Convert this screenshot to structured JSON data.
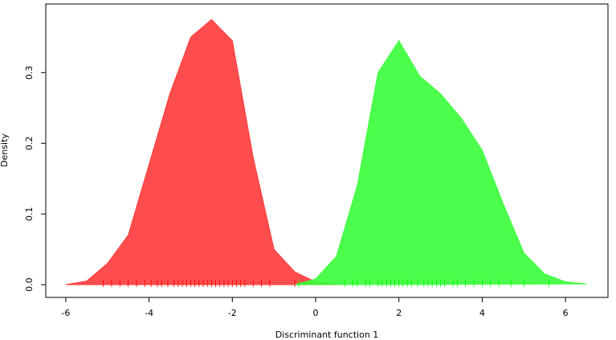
{
  "chart_data": {
    "type": "density",
    "x_label": "Discriminant function 1",
    "y_label": "Density",
    "x": [
      -6,
      -5.5,
      -5,
      -4.5,
      -4,
      -3.5,
      -3,
      -2.5,
      -2,
      -1.5,
      -1,
      -0.5,
      0,
      0.5,
      1,
      1.5,
      2,
      2.5,
      3,
      3.5,
      4,
      4.5,
      5,
      5.5,
      6,
      6.5
    ],
    "series": [
      {
        "color": "#ff3a3a",
        "values": [
          0,
          0.005,
          0.03,
          0.07,
          0.17,
          0.27,
          0.35,
          0.375,
          0.345,
          0.18,
          0.05,
          0.018,
          0.004,
          0,
          null,
          null,
          null,
          null,
          null,
          null,
          null,
          null,
          null,
          null,
          null,
          null
        ],
        "rug_color": "#ff0000",
        "rug": [
          -5.1,
          -4.9,
          -4.7,
          -4.5,
          -4.3,
          -4.1,
          -3.95,
          -3.8,
          -3.7,
          -3.55,
          -3.4,
          -3.3,
          -3.2,
          -3.1,
          -3.0,
          -2.9,
          -2.8,
          -2.7,
          -2.6,
          -2.5,
          -2.4,
          -2.3,
          -2.2,
          -2.1,
          -2.0,
          -1.9,
          -1.8,
          -1.7,
          -1.5,
          -1.3,
          -1.1,
          -0.5
        ]
      },
      {
        "color": "#3aff3a",
        "values": [
          null,
          null,
          null,
          null,
          null,
          null,
          null,
          null,
          null,
          null,
          null,
          0,
          0.008,
          0.04,
          0.14,
          0.3,
          0.345,
          0.295,
          0.27,
          0.235,
          0.19,
          0.115,
          0.045,
          0.015,
          0.004,
          0.001
        ],
        "rug_color": "#00ff00",
        "rug": [
          -0.4,
          0.7,
          0.9,
          1.0,
          1.2,
          1.3,
          1.5,
          1.6,
          1.7,
          1.8,
          1.9,
          2.0,
          2.1,
          2.2,
          2.3,
          2.45,
          2.6,
          2.7,
          2.8,
          2.9,
          3.0,
          3.1,
          3.3,
          3.4,
          3.6,
          3.8,
          4.0,
          4.2,
          4.4,
          4.7,
          5.0,
          5.6
        ]
      }
    ],
    "xlim": [
      -6.48,
      7.02
    ],
    "ylim": [
      -0.018,
      0.397
    ],
    "xticks": [
      -6,
      -4,
      -2,
      0,
      2,
      4,
      6
    ],
    "yticks": [
      {
        "value": 0,
        "label": "0.0"
      },
      0.1,
      0.2,
      0.3
    ]
  }
}
